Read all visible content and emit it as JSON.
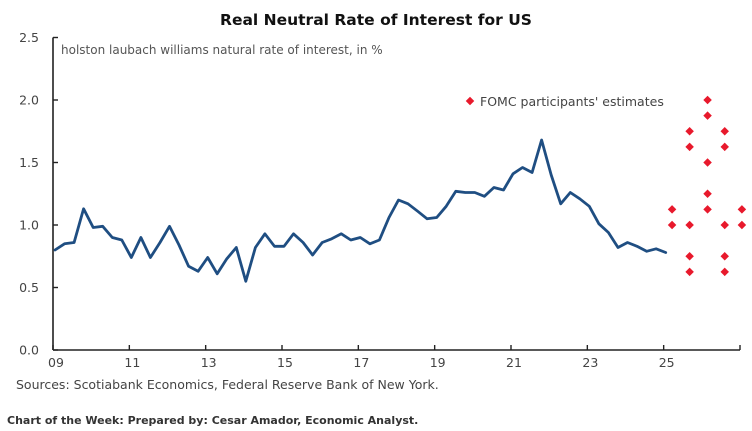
{
  "chart_data": {
    "type": "line",
    "title": "Real Neutral Rate of Interest for US",
    "subtitle": "holston laubach williams natural rate of interest, in %",
    "xlabel": "",
    "ylabel": "",
    "xlim": [
      2009,
      2027
    ],
    "ylim": [
      0,
      2.5
    ],
    "grid": false,
    "y_ticks": [
      0.0,
      0.5,
      1.0,
      1.5,
      2.0,
      2.5
    ],
    "y_tick_labels": [
      "0.0",
      "0.5",
      "1.0",
      "1.5",
      "2.0",
      "2.5"
    ],
    "x_ticks": [
      2009,
      2011,
      2013,
      2015,
      2017,
      2019,
      2021,
      2023,
      2025
    ],
    "x_tick_labels": [
      "09",
      "11",
      "13",
      "15",
      "17",
      "19",
      "21",
      "23",
      "25"
    ],
    "series": [
      {
        "name": "holston laubach williams natural rate of interest",
        "color": "#1f4e82",
        "x_start": 2009.0,
        "x_step": 0.25,
        "values": [
          0.8,
          0.85,
          0.86,
          1.13,
          0.98,
          0.99,
          0.9,
          0.88,
          0.74,
          0.9,
          0.74,
          0.86,
          0.99,
          0.84,
          0.67,
          0.63,
          0.74,
          0.61,
          0.73,
          0.82,
          0.55,
          0.82,
          0.93,
          0.83,
          0.83,
          0.93,
          0.86,
          0.76,
          0.86,
          0.89,
          0.93,
          0.88,
          0.9,
          0.85,
          0.88,
          1.06,
          1.2,
          1.17,
          1.11,
          1.05,
          1.06,
          1.15,
          1.27,
          1.26,
          1.26,
          1.23,
          1.3,
          1.28,
          1.41,
          1.46,
          1.42,
          1.68,
          1.4,
          1.17,
          1.26,
          1.21,
          1.15,
          1.01,
          0.94,
          0.82,
          0.86,
          0.83,
          0.79,
          0.81,
          0.78
        ]
      },
      {
        "name": "FOMC participants' estimates",
        "type": "scatter",
        "color": "#e8192c",
        "points": [
          {
            "x": 2026.15,
            "y": 2.0
          },
          {
            "x": 2026.15,
            "y": 1.875
          },
          {
            "x": 2025.68,
            "y": 1.75
          },
          {
            "x": 2026.6,
            "y": 1.75
          },
          {
            "x": 2025.68,
            "y": 1.625
          },
          {
            "x": 2026.6,
            "y": 1.625
          },
          {
            "x": 2026.15,
            "y": 1.5
          },
          {
            "x": 2026.15,
            "y": 1.25
          },
          {
            "x": 2025.22,
            "y": 1.125
          },
          {
            "x": 2026.15,
            "y": 1.125
          },
          {
            "x": 2027.05,
            "y": 1.125
          },
          {
            "x": 2025.22,
            "y": 1.0
          },
          {
            "x": 2025.68,
            "y": 1.0
          },
          {
            "x": 2026.6,
            "y": 1.0
          },
          {
            "x": 2027.05,
            "y": 1.0
          },
          {
            "x": 2025.68,
            "y": 0.75
          },
          {
            "x": 2026.6,
            "y": 0.75
          },
          {
            "x": 2025.68,
            "y": 0.625
          },
          {
            "x": 2026.6,
            "y": 0.625
          }
        ]
      }
    ],
    "legend": {
      "position": "top-right",
      "entries": [
        "FOMC participants' estimates"
      ]
    },
    "source": "Sources: Scotiabank Economics, Federal Reserve Bank of New York.",
    "footer": "Chart of the Week: Prepared by: Cesar Amador, Economic Analyst."
  }
}
